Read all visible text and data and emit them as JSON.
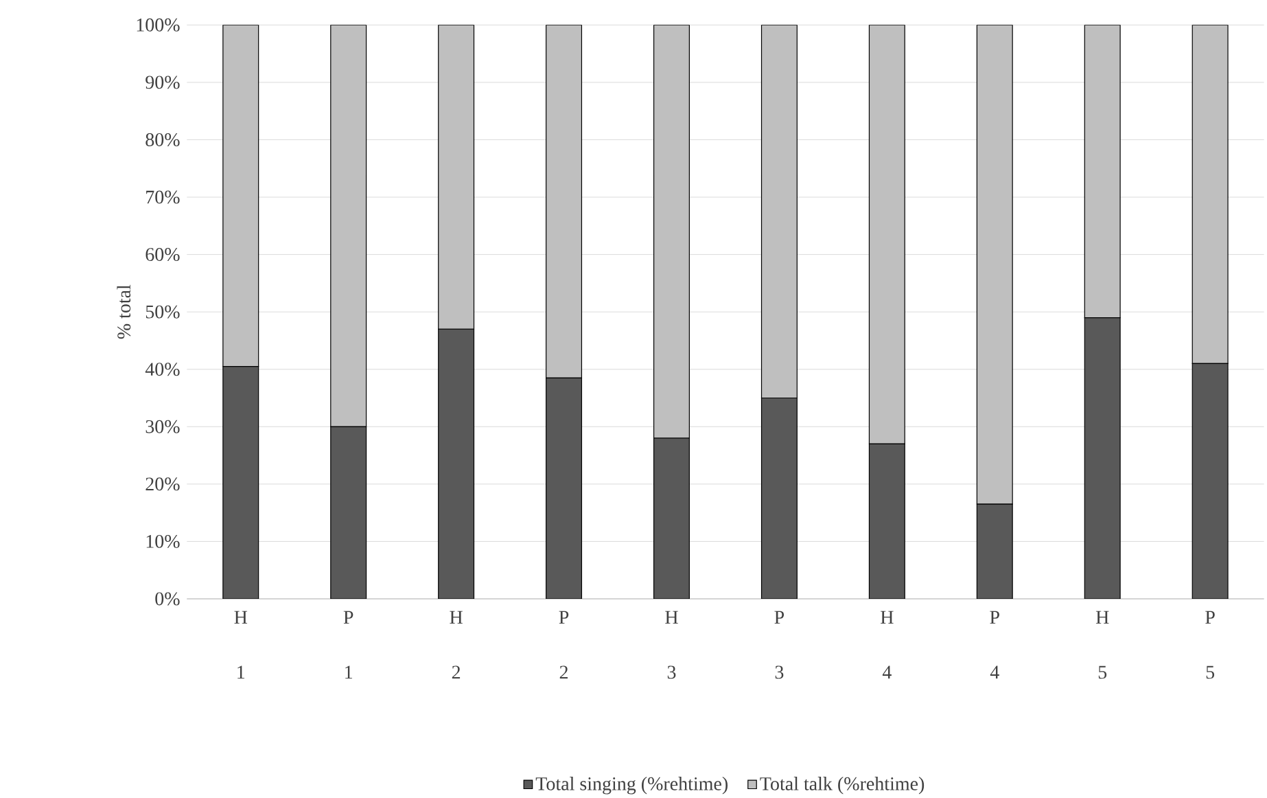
{
  "chart_data": {
    "type": "bar",
    "stacked": true,
    "ylabel": "% total",
    "categories": [
      "H 1",
      "P 1",
      "H 2",
      "P 2",
      "H 3",
      "P 3",
      "H 4",
      "P 4",
      "H 5",
      "P 5"
    ],
    "series": [
      {
        "name": "Total singing (%rehtime)",
        "color": "#595959",
        "values": [
          40.5,
          30,
          47,
          38.5,
          28,
          35,
          27,
          16.5,
          49,
          41
        ]
      },
      {
        "name": "Total talk (%rehtime)",
        "color": "#bfbfbf",
        "values": [
          59.5,
          70,
          53,
          61.5,
          72,
          65,
          73,
          83.5,
          51,
          59
        ]
      }
    ],
    "ylim": [
      0,
      100
    ],
    "yticks": [
      {
        "value": 0,
        "label": "0%"
      },
      {
        "value": 10,
        "label": "10%"
      },
      {
        "value": 20,
        "label": "20%"
      },
      {
        "value": 30,
        "label": "30%"
      },
      {
        "value": 40,
        "label": "40%"
      },
      {
        "value": 50,
        "label": "50%"
      },
      {
        "value": 60,
        "label": "60%"
      },
      {
        "value": 70,
        "label": "70%"
      },
      {
        "value": 80,
        "label": "80%"
      },
      {
        "value": 90,
        "label": "90%"
      },
      {
        "value": 100,
        "label": "100%"
      }
    ],
    "grid": "y",
    "legend": "bottom"
  }
}
